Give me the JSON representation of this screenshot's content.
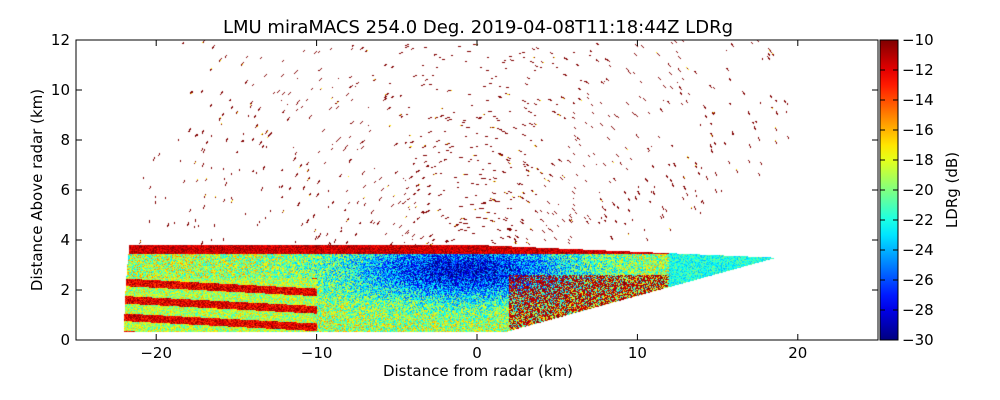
{
  "chart_data": {
    "type": "heatmap",
    "title": "LMU miraMACS 254.0 Deg. 2019-04-08T11:18:44Z  LDRg",
    "xlabel": "Distance from radar (km)",
    "ylabel": "Distance Above radar  (km)",
    "xlim": [
      -25,
      25
    ],
    "ylim": [
      0,
      12
    ],
    "x_ticks": [
      -20,
      -10,
      0,
      10,
      20
    ],
    "y_ticks": [
      0,
      2,
      4,
      6,
      8,
      10,
      12
    ],
    "grid": false,
    "colorbar": {
      "label": "LDRg (dB)",
      "range": [
        -30,
        -10
      ],
      "ticks": [
        -30,
        -28,
        -26,
        -24,
        -22,
        -20,
        -18,
        -16,
        -14,
        -12,
        -10
      ],
      "colormap": "jet"
    },
    "scan": {
      "type": "RHI",
      "azimuth_deg": 254.0,
      "max_range_km": 22,
      "low_elevation_deg": 10,
      "cloud_top_km": 3.8,
      "cloud_base_km": 0.3,
      "noise_value_db": -10
    },
    "regions": [
      {
        "name": "noise speckle",
        "height_km": [
          4,
          12
        ],
        "ldr_db": -10
      },
      {
        "name": "cloud layer",
        "height_km": [
          0.3,
          3.8
        ],
        "ldr_db": [
          -30,
          -18
        ]
      },
      {
        "name": "mid-layer core",
        "x_km": [
          -6,
          4
        ],
        "height_km": [
          1.5,
          3.8
        ],
        "ldr_db": -27
      },
      {
        "name": "left low-level band",
        "x_km": [
          -22,
          -10
        ],
        "height_km": [
          0.3,
          2.5
        ],
        "ldr_db": [
          -18,
          -10
        ]
      },
      {
        "name": "right low-level band",
        "x_km": [
          2,
          12
        ],
        "height_km": [
          0.5,
          2.5
        ],
        "ldr_db": -10
      }
    ]
  }
}
